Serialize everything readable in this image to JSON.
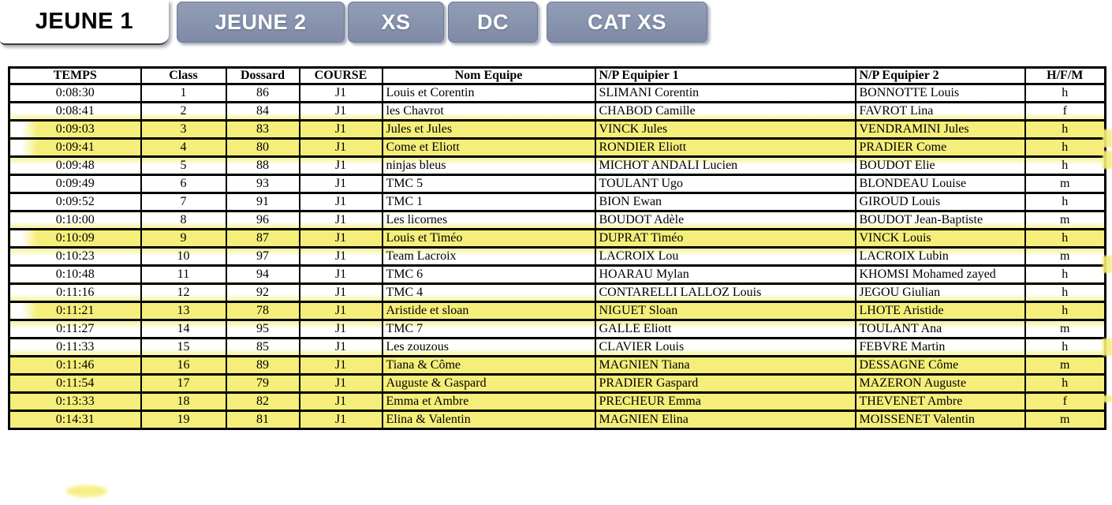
{
  "tabs": [
    {
      "label": "JEUNE 1",
      "active": true
    },
    {
      "label": "JEUNE 2",
      "active": false
    },
    {
      "label": "XS",
      "active": false
    },
    {
      "label": "DC",
      "active": false
    },
    {
      "label": "CAT XS",
      "active": false
    }
  ],
  "colors": {
    "highlight": "#f5ee7a",
    "tab_inactive": "#8691aa",
    "tab_active": "#ffffff",
    "tab_text": "#ffffff",
    "active_tab_text": "#000000"
  },
  "table": {
    "headers": [
      "TEMPS",
      "Class",
      "Dossard",
      "COURSE",
      "Nom Equipe",
      "N/P Equipier 1",
      "N/P Equipier 2",
      "H/F/M"
    ],
    "rows": [
      {
        "temps": "0:08:30",
        "class": "1",
        "dossard": "86",
        "course": "J1",
        "equipe": "Louis et Corentin",
        "equipier1": "SLIMANI Corentin",
        "equipier2": "BONNOTTE Louis",
        "hfm": "h",
        "highlighted": false
      },
      {
        "temps": "0:08:41",
        "class": "2",
        "dossard": "84",
        "course": "J1",
        "equipe": "les Chavrot",
        "equipier1": "CHABOD Camille",
        "equipier2": "FAVROT Lina",
        "hfm": "f",
        "highlighted": false
      },
      {
        "temps": "0:09:03",
        "class": "3",
        "dossard": "83",
        "course": "J1",
        "equipe": "Jules et Jules",
        "equipier1": "VINCK Jules",
        "equipier2": "VENDRAMINI Jules",
        "hfm": "h",
        "highlighted": true
      },
      {
        "temps": "0:09:41",
        "class": "4",
        "dossard": "80",
        "course": "J1",
        "equipe": "Come et Eliott",
        "equipier1": "RONDIER Eliott",
        "equipier2": "PRADIER Come",
        "hfm": "h",
        "highlighted": true
      },
      {
        "temps": "0:09:48",
        "class": "5",
        "dossard": "88",
        "course": "J1",
        "equipe": "ninjas bleus",
        "equipier1": "MICHOT ANDALI Lucien",
        "equipier2": "BOUDOT Elie",
        "hfm": "h",
        "highlighted": false
      },
      {
        "temps": "0:09:49",
        "class": "6",
        "dossard": "93",
        "course": "J1",
        "equipe": "TMC 5",
        "equipier1": "TOULANT Ugo",
        "equipier2": "BLONDEAU Louise",
        "hfm": "m",
        "highlighted": false
      },
      {
        "temps": "0:09:52",
        "class": "7",
        "dossard": "91",
        "course": "J1",
        "equipe": "TMC 1",
        "equipier1": "BION Ewan",
        "equipier2": "GIROUD Louis",
        "hfm": "h",
        "highlighted": false
      },
      {
        "temps": "0:10:00",
        "class": "8",
        "dossard": "96",
        "course": "J1",
        "equipe": "Les licornes",
        "equipier1": "BOUDOT Adèle",
        "equipier2": "BOUDOT Jean-Baptiste",
        "hfm": "m",
        "highlighted": false
      },
      {
        "temps": "0:10:09",
        "class": "9",
        "dossard": "87",
        "course": "J1",
        "equipe": "Louis et Timéo",
        "equipier1": "DUPRAT Timéo",
        "equipier2": "VINCK Louis",
        "hfm": "h",
        "highlighted": true
      },
      {
        "temps": "0:10:23",
        "class": "10",
        "dossard": "97",
        "course": "J1",
        "equipe": "Team Lacroix",
        "equipier1": "LACROIX Lou",
        "equipier2": "LACROIX Lubin",
        "hfm": "m",
        "highlighted": false
      },
      {
        "temps": "0:10:48",
        "class": "11",
        "dossard": "94",
        "course": "J1",
        "equipe": "TMC 6",
        "equipier1": "HOARAU Mylan",
        "equipier2": "KHOMSI Mohamed zayed",
        "hfm": "h",
        "highlighted": false
      },
      {
        "temps": "0:11:16",
        "class": "12",
        "dossard": "92",
        "course": "J1",
        "equipe": "TMC 4",
        "equipier1": "CONTARELLI LALLOZ Louis",
        "equipier2": "JEGOU Giulian",
        "hfm": "h",
        "highlighted": false
      },
      {
        "temps": "0:11:21",
        "class": "13",
        "dossard": "78",
        "course": "J1",
        "equipe": "Aristide  et sloan",
        "equipier1": "NIGUET Sloan",
        "equipier2": "LHOTE Aristide",
        "hfm": "h",
        "highlighted": true
      },
      {
        "temps": "0:11:27",
        "class": "14",
        "dossard": "95",
        "course": "J1",
        "equipe": "TMC 7",
        "equipier1": "GALLE Eliott",
        "equipier2": "TOULANT Ana",
        "hfm": "m",
        "highlighted": false
      },
      {
        "temps": "0:11:33",
        "class": "15",
        "dossard": "85",
        "course": "J1",
        "equipe": "Les zouzous",
        "equipier1": "CLAVIER Louis",
        "equipier2": "FEBVRE Martin",
        "hfm": "h",
        "highlighted": false
      },
      {
        "temps": "0:11:46",
        "class": "16",
        "dossard": "89",
        "course": "J1",
        "equipe": "Tiana & Côme",
        "equipier1": "MAGNIEN Tiana",
        "equipier2": "DESSAGNE Côme",
        "hfm": "m",
        "highlighted": true
      },
      {
        "temps": "0:11:54",
        "class": "17",
        "dossard": "79",
        "course": "J1",
        "equipe": "Auguste & Gaspard",
        "equipier1": "PRADIER Gaspard",
        "equipier2": "MAZERON Auguste",
        "hfm": "h",
        "highlighted": true
      },
      {
        "temps": "0:13:33",
        "class": "18",
        "dossard": "82",
        "course": "J1",
        "equipe": "Emma et Ambre",
        "equipier1": "PRECHEUR Emma",
        "equipier2": "THEVENET Ambre",
        "hfm": "f",
        "highlighted": true
      },
      {
        "temps": "0:14:31",
        "class": "19",
        "dossard": "81",
        "course": "J1",
        "equipe": "Elina & Valentin",
        "equipier1": "MAGNIEN Elina",
        "equipier2": "MOISSENET Valentin",
        "hfm": "m",
        "highlighted": true
      }
    ]
  }
}
